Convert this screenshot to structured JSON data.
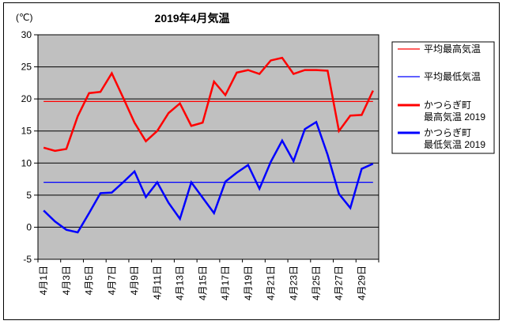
{
  "chart": {
    "title": "2019年4月気温",
    "y_axis_unit": "(℃)"
  },
  "chart_data": {
    "type": "line",
    "title": "2019年4月気温",
    "y_axis_unit": "(℃)",
    "n_points": 30,
    "x_tick_labels": [
      "4月1日",
      "4月3日",
      "4月5日",
      "4月7日",
      "4月9日",
      "4月11日",
      "4月13日",
      "4月15日",
      "4月17日",
      "4月19日",
      "4月21日",
      "4月23日",
      "4月25日",
      "4月27日",
      "4月29日"
    ],
    "ylim": [
      -5,
      30
    ],
    "ytick_step": 5,
    "ytick_labels": [
      "30",
      "25",
      "20",
      "15",
      "10",
      "5",
      "0",
      "-5"
    ],
    "grid": "horizontal-only",
    "plot_bg_color": "#C0C0C0",
    "line_colors": {
      "max": "#FF0000",
      "min": "#0000FF"
    },
    "legend_position": "right",
    "series": [
      {
        "id": "avg-max",
        "name": "平均最高気温",
        "legend_lines": [
          "平均最高気温"
        ],
        "color": "#FF0000",
        "style": "thin",
        "constant": 19.6
      },
      {
        "id": "avg-min",
        "name": "平均最低気温",
        "legend_lines": [
          "平均最低気温"
        ],
        "color": "#0000FF",
        "style": "thin",
        "constant": 7.0
      },
      {
        "id": "max-2019",
        "name": "かつらぎ町 最高気温 2019",
        "legend_lines": [
          "かつらぎ町",
          "最高気温 2019"
        ],
        "color": "#FF0000",
        "style": "thick",
        "values": [
          12.4,
          11.9,
          12.2,
          17.3,
          20.9,
          21.1,
          24.0,
          20.2,
          16.3,
          13.4,
          15.0,
          17.8,
          19.3,
          15.8,
          16.3,
          22.7,
          20.6,
          24.1,
          24.5,
          23.9,
          26.0,
          26.4,
          23.9,
          24.5,
          24.5,
          24.4,
          15.0,
          17.4,
          17.5,
          21.3
        ]
      },
      {
        "id": "min-2019",
        "name": "かつらぎ町 最低気温 2019",
        "legend_lines": [
          "かつらぎ町",
          "最低気温 2019"
        ],
        "color": "#0000FF",
        "style": "thick",
        "values": [
          2.6,
          0.9,
          -0.4,
          -0.8,
          2.2,
          5.3,
          5.4,
          7.0,
          8.7,
          4.7,
          7.0,
          3.8,
          1.3,
          7.0,
          4.6,
          2.2,
          7.1,
          8.5,
          9.7,
          6.0,
          10.2,
          13.5,
          10.3,
          15.3,
          16.4,
          11.3,
          5.2,
          3.0,
          9.1,
          9.9
        ]
      }
    ]
  }
}
